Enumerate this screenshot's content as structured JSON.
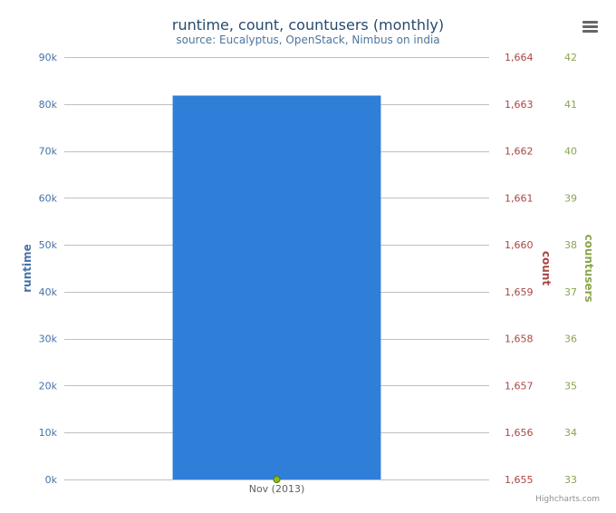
{
  "chart_data": {
    "type": "bar",
    "title": "runtime, count, countusers (monthly)",
    "subtitle": "source: Eucalyptus, OpenStack, Nimbus on india",
    "categories": [
      "Nov (2013)"
    ],
    "series": [
      {
        "name": "runtime",
        "axis": "runtime",
        "kind": "column",
        "color": "#2f7ed8",
        "values": [
          81800
        ]
      },
      {
        "name": "count",
        "axis": "count",
        "kind": "line",
        "color": "#8bbc21",
        "values": [
          1655
        ]
      },
      {
        "name": "countusers",
        "axis": "countusers",
        "kind": "line",
        "color": "#8bbc21",
        "values": [
          33
        ]
      }
    ],
    "axes": {
      "runtime": {
        "title": "runtime",
        "color": "#4572a7",
        "ylim": [
          0,
          90000
        ],
        "ticks": [
          0,
          10000,
          20000,
          30000,
          40000,
          50000,
          60000,
          70000,
          80000,
          90000
        ],
        "tick_labels": [
          "0k",
          "10k",
          "20k",
          "30k",
          "40k",
          "50k",
          "60k",
          "70k",
          "80k",
          "90k"
        ]
      },
      "count": {
        "title": "count",
        "color": "#aa4643",
        "ylim": [
          1655,
          1664
        ],
        "ticks": [
          1655,
          1656,
          1657,
          1658,
          1659,
          1660,
          1661,
          1662,
          1663,
          1664
        ],
        "tick_labels": [
          "1,655",
          "1,656",
          "1,657",
          "1,658",
          "1,659",
          "1,660",
          "1,661",
          "1,662",
          "1,663",
          "1,664"
        ]
      },
      "countusers": {
        "title": "countusers",
        "color": "#89a54e",
        "ylim": [
          33,
          42
        ],
        "ticks": [
          33,
          34,
          35,
          36,
          37,
          38,
          39,
          40,
          41,
          42
        ],
        "tick_labels": [
          "33",
          "34",
          "35",
          "36",
          "37",
          "38",
          "39",
          "40",
          "41",
          "42"
        ]
      }
    },
    "grid": true,
    "legend": "none"
  },
  "credits": "Highcharts.com",
  "menu_icon": "hamburger-menu-icon"
}
